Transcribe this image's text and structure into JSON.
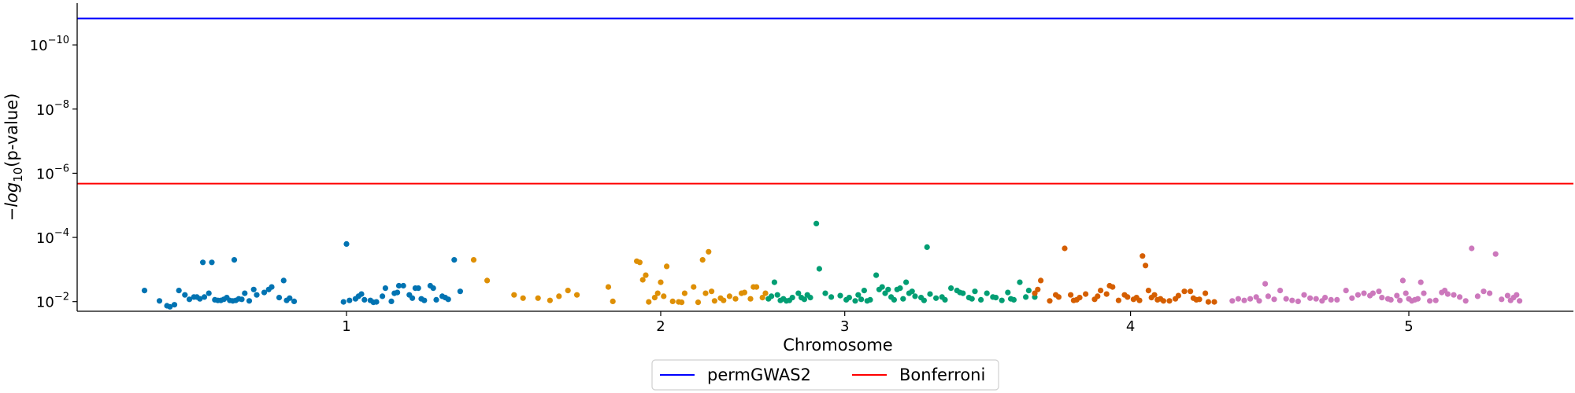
{
  "chart_data": {
    "type": "scatter",
    "title": "",
    "xlabel": "Chromosome",
    "ylabel_parts": [
      "−",
      "log",
      "10",
      "(p-value)"
    ],
    "y_scale": "log",
    "ylim": [
      0.02,
      5e-12
    ],
    "x_ticks": [
      {
        "label": "1",
        "x": 0.18
      },
      {
        "label": "2",
        "x": 0.39
      },
      {
        "label": "3",
        "x": 0.513
      },
      {
        "label": "4",
        "x": 0.704
      },
      {
        "label": "5",
        "x": 0.89
      }
    ],
    "y_ticks": [
      {
        "base": "10",
        "exp": "−2",
        "value": 0.01
      },
      {
        "base": "10",
        "exp": "−4",
        "value": 0.0001
      },
      {
        "base": "10",
        "exp": "−6",
        "value": 1e-06
      },
      {
        "base": "10",
        "exp": "−8",
        "value": 1e-08
      },
      {
        "base": "10",
        "exp": "−10",
        "value": 1e-10
      }
    ],
    "thresholds": [
      {
        "name": "permGWAS2",
        "value": 1.5e-11,
        "color": "#0000ff"
      },
      {
        "name": "Bonferroni",
        "value": 2.1e-06,
        "color": "#ff0000"
      }
    ],
    "legend": {
      "placement": "bottom-center"
    },
    "series": [
      {
        "chromosome": "1",
        "color": "#0173b2",
        "points": [
          [
            0.045,
            0.0045
          ],
          [
            0.055,
            0.0095
          ],
          [
            0.06,
            0.0135
          ],
          [
            0.062,
            0.0145
          ],
          [
            0.065,
            0.0125
          ],
          [
            0.068,
            0.0045
          ],
          [
            0.072,
            0.0062
          ],
          [
            0.075,
            0.0085
          ],
          [
            0.078,
            0.0072
          ],
          [
            0.08,
            0.0072
          ],
          [
            0.082,
            0.0082
          ],
          [
            0.084,
            0.0006
          ],
          [
            0.085,
            0.0072
          ],
          [
            0.088,
            0.0055
          ],
          [
            0.09,
            0.0006
          ],
          [
            0.092,
            0.0088
          ],
          [
            0.094,
            0.0092
          ],
          [
            0.096,
            0.0092
          ],
          [
            0.098,
            0.0085
          ],
          [
            0.1,
            0.0075
          ],
          [
            0.102,
            0.0092
          ],
          [
            0.104,
            0.0095
          ],
          [
            0.105,
            0.0005
          ],
          [
            0.106,
            0.0092
          ],
          [
            0.108,
            0.0082
          ],
          [
            0.11,
            0.0085
          ],
          [
            0.112,
            0.0055
          ],
          [
            0.115,
            0.0095
          ],
          [
            0.118,
            0.0042
          ],
          [
            0.12,
            0.0062
          ],
          [
            0.125,
            0.0052
          ],
          [
            0.128,
            0.0042
          ],
          [
            0.13,
            0.0035
          ],
          [
            0.135,
            0.0075
          ],
          [
            0.138,
            0.0022
          ],
          [
            0.14,
            0.0092
          ],
          [
            0.142,
            0.0078
          ],
          [
            0.145,
            0.0098
          ],
          [
            0.178,
            0.0102
          ],
          [
            0.18,
            0.00016
          ],
          [
            0.182,
            0.0092
          ],
          [
            0.186,
            0.0082
          ],
          [
            0.188,
            0.0068
          ],
          [
            0.19,
            0.0058
          ],
          [
            0.192,
            0.0088
          ],
          [
            0.196,
            0.0092
          ],
          [
            0.198,
            0.0105
          ],
          [
            0.2,
            0.0102
          ],
          [
            0.204,
            0.0068
          ],
          [
            0.206,
            0.0038
          ],
          [
            0.21,
            0.0098
          ],
          [
            0.212,
            0.0055
          ],
          [
            0.214,
            0.0052
          ],
          [
            0.215,
            0.0032
          ],
          [
            0.218,
            0.0032
          ],
          [
            0.222,
            0.0062
          ],
          [
            0.224,
            0.0078
          ],
          [
            0.226,
            0.0038
          ],
          [
            0.228,
            0.0038
          ],
          [
            0.23,
            0.0082
          ],
          [
            0.232,
            0.0092
          ],
          [
            0.236,
            0.0032
          ],
          [
            0.238,
            0.0038
          ],
          [
            0.24,
            0.0088
          ],
          [
            0.244,
            0.0068
          ],
          [
            0.246,
            0.0075
          ],
          [
            0.248,
            0.0085
          ],
          [
            0.252,
            0.0005
          ],
          [
            0.256,
            0.0048
          ]
        ]
      },
      {
        "chromosome": "2",
        "color": "#de8f05",
        "points": [
          [
            0.265,
            0.0005
          ],
          [
            0.274,
            0.0022
          ],
          [
            0.292,
            0.0062
          ],
          [
            0.298,
            0.0078
          ],
          [
            0.308,
            0.0078
          ],
          [
            0.316,
            0.0092
          ],
          [
            0.322,
            0.0068
          ],
          [
            0.328,
            0.0045
          ],
          [
            0.334,
            0.0062
          ],
          [
            0.355,
            0.0035
          ],
          [
            0.358,
            0.0098
          ],
          [
            0.374,
            0.00055
          ],
          [
            0.376,
            0.0006
          ],
          [
            0.378,
            0.0021
          ],
          [
            0.38,
            0.0015
          ],
          [
            0.382,
            0.0102
          ],
          [
            0.386,
            0.0075
          ],
          [
            0.388,
            0.0055
          ],
          [
            0.39,
            0.0025
          ],
          [
            0.392,
            0.0068
          ],
          [
            0.394,
            0.0008
          ],
          [
            0.398,
            0.0098
          ],
          [
            0.402,
            0.0102
          ],
          [
            0.404,
            0.0105
          ],
          [
            0.406,
            0.0055
          ],
          [
            0.412,
            0.0035
          ],
          [
            0.415,
            0.0105
          ],
          [
            0.418,
            0.0005
          ],
          [
            0.42,
            0.0055
          ],
          [
            0.422,
            0.00028
          ],
          [
            0.424,
            0.0048
          ],
          [
            0.426,
            0.0095
          ],
          [
            0.43,
            0.0078
          ],
          [
            0.432,
            0.0092
          ],
          [
            0.436,
            0.0068
          ],
          [
            0.44,
            0.0082
          ],
          [
            0.444,
            0.0055
          ],
          [
            0.446,
            0.0052
          ],
          [
            0.45,
            0.0082
          ],
          [
            0.452,
            0.0035
          ],
          [
            0.454,
            0.0035
          ],
          [
            0.458,
            0.0075
          ],
          [
            0.46,
            0.0055
          ]
        ]
      },
      {
        "chromosome": "3",
        "color": "#029e73",
        "points": [
          [
            0.462,
            0.0082
          ],
          [
            0.464,
            0.0068
          ],
          [
            0.466,
            0.0025
          ],
          [
            0.468,
            0.0062
          ],
          [
            0.47,
            0.0092
          ],
          [
            0.472,
            0.0082
          ],
          [
            0.474,
            0.0095
          ],
          [
            0.476,
            0.0092
          ],
          [
            0.478,
            0.0075
          ],
          [
            0.482,
            0.0055
          ],
          [
            0.484,
            0.0075
          ],
          [
            0.486,
            0.0085
          ],
          [
            0.488,
            0.0062
          ],
          [
            0.49,
            0.0075
          ],
          [
            0.494,
            3.7e-05
          ],
          [
            0.496,
            0.00095
          ],
          [
            0.5,
            0.0055
          ],
          [
            0.504,
            0.0072
          ],
          [
            0.51,
            0.0065
          ],
          [
            0.514,
            0.0088
          ],
          [
            0.516,
            0.0075
          ],
          [
            0.52,
            0.0095
          ],
          [
            0.522,
            0.0062
          ],
          [
            0.524,
            0.0085
          ],
          [
            0.526,
            0.0045
          ],
          [
            0.528,
            0.0095
          ],
          [
            0.53,
            0.0088
          ],
          [
            0.534,
            0.0015
          ],
          [
            0.536,
            0.0042
          ],
          [
            0.538,
            0.0035
          ],
          [
            0.54,
            0.0055
          ],
          [
            0.542,
            0.0042
          ],
          [
            0.544,
            0.0072
          ],
          [
            0.546,
            0.0088
          ],
          [
            0.548,
            0.0042
          ],
          [
            0.55,
            0.0038
          ],
          [
            0.552,
            0.0082
          ],
          [
            0.554,
            0.0025
          ],
          [
            0.556,
            0.0055
          ],
          [
            0.558,
            0.0048
          ],
          [
            0.56,
            0.0068
          ],
          [
            0.564,
            0.0075
          ],
          [
            0.566,
            0.0092
          ],
          [
            0.568,
            0.0002
          ],
          [
            0.57,
            0.0058
          ],
          [
            0.574,
            0.0078
          ],
          [
            0.578,
            0.0072
          ],
          [
            0.58,
            0.0088
          ],
          [
            0.584,
            0.0038
          ],
          [
            0.588,
            0.0045
          ],
          [
            0.59,
            0.0052
          ],
          [
            0.592,
            0.0055
          ],
          [
            0.596,
            0.0075
          ],
          [
            0.598,
            0.0082
          ],
          [
            0.6,
            0.0048
          ],
          [
            0.604,
            0.0088
          ],
          [
            0.608,
            0.0055
          ],
          [
            0.612,
            0.0072
          ],
          [
            0.614,
            0.0075
          ],
          [
            0.618,
            0.0092
          ],
          [
            0.622,
            0.0052
          ],
          [
            0.624,
            0.0082
          ],
          [
            0.626,
            0.0088
          ],
          [
            0.63,
            0.0025
          ],
          [
            0.634,
            0.0072
          ],
          [
            0.636,
            0.0045
          ],
          [
            0.64,
            0.0072
          ]
        ]
      },
      {
        "chromosome": "4",
        "color": "#d55e00",
        "points": [
          [
            0.64,
            0.0055
          ],
          [
            0.642,
            0.0042
          ],
          [
            0.644,
            0.0022
          ],
          [
            0.65,
            0.0095
          ],
          [
            0.654,
            0.0062
          ],
          [
            0.656,
            0.0072
          ],
          [
            0.66,
            0.00022
          ],
          [
            0.664,
            0.0062
          ],
          [
            0.666,
            0.0092
          ],
          [
            0.668,
            0.0088
          ],
          [
            0.67,
            0.0075
          ],
          [
            0.674,
            0.0058
          ],
          [
            0.68,
            0.0085
          ],
          [
            0.682,
            0.0068
          ],
          [
            0.684,
            0.0045
          ],
          [
            0.688,
            0.0058
          ],
          [
            0.69,
            0.0032
          ],
          [
            0.692,
            0.0035
          ],
          [
            0.696,
            0.0092
          ],
          [
            0.7,
            0.0062
          ],
          [
            0.702,
            0.0072
          ],
          [
            0.706,
            0.0085
          ],
          [
            0.708,
            0.0075
          ],
          [
            0.71,
            0.0092
          ],
          [
            0.712,
            0.00038
          ],
          [
            0.714,
            0.00075
          ],
          [
            0.716,
            0.0045
          ],
          [
            0.718,
            0.0075
          ],
          [
            0.72,
            0.0062
          ],
          [
            0.722,
            0.0088
          ],
          [
            0.724,
            0.0082
          ],
          [
            0.726,
            0.0095
          ],
          [
            0.73,
            0.0095
          ],
          [
            0.734,
            0.0082
          ],
          [
            0.736,
            0.0065
          ],
          [
            0.74,
            0.0048
          ],
          [
            0.744,
            0.0048
          ],
          [
            0.746,
            0.0078
          ],
          [
            0.748,
            0.0088
          ],
          [
            0.75,
            0.0085
          ],
          [
            0.754,
            0.0055
          ],
          [
            0.756,
            0.0102
          ],
          [
            0.76,
            0.0102
          ]
        ]
      },
      {
        "chromosome": "5",
        "color": "#cc78bc",
        "points": [
          [
            0.772,
            0.0095
          ],
          [
            0.776,
            0.0082
          ],
          [
            0.78,
            0.0092
          ],
          [
            0.784,
            0.0082
          ],
          [
            0.788,
            0.0072
          ],
          [
            0.79,
            0.0095
          ],
          [
            0.794,
            0.0028
          ],
          [
            0.796,
            0.0068
          ],
          [
            0.8,
            0.0085
          ],
          [
            0.804,
            0.0045
          ],
          [
            0.808,
            0.0082
          ],
          [
            0.812,
            0.0092
          ],
          [
            0.816,
            0.0098
          ],
          [
            0.82,
            0.0062
          ],
          [
            0.824,
            0.0078
          ],
          [
            0.828,
            0.0082
          ],
          [
            0.832,
            0.0095
          ],
          [
            0.834,
            0.0075
          ],
          [
            0.838,
            0.0088
          ],
          [
            0.842,
            0.0088
          ],
          [
            0.848,
            0.0045
          ],
          [
            0.852,
            0.0078
          ],
          [
            0.856,
            0.0062
          ],
          [
            0.86,
            0.0055
          ],
          [
            0.864,
            0.0065
          ],
          [
            0.866,
            0.0055
          ],
          [
            0.87,
            0.0048
          ],
          [
            0.872,
            0.0075
          ],
          [
            0.876,
            0.0082
          ],
          [
            0.878,
            0.0088
          ],
          [
            0.882,
            0.0065
          ],
          [
            0.884,
            0.0092
          ],
          [
            0.886,
            0.0022
          ],
          [
            0.888,
            0.0055
          ],
          [
            0.89,
            0.0082
          ],
          [
            0.892,
            0.0095
          ],
          [
            0.894,
            0.0088
          ],
          [
            0.896,
            0.0082
          ],
          [
            0.898,
            0.0025
          ],
          [
            0.9,
            0.0055
          ],
          [
            0.904,
            0.0095
          ],
          [
            0.908,
            0.0092
          ],
          [
            0.912,
            0.0052
          ],
          [
            0.914,
            0.0045
          ],
          [
            0.916,
            0.0058
          ],
          [
            0.92,
            0.0062
          ],
          [
            0.924,
            0.0072
          ],
          [
            0.928,
            0.0095
          ],
          [
            0.932,
            0.00022
          ],
          [
            0.936,
            0.0068
          ],
          [
            0.94,
            0.0048
          ],
          [
            0.944,
            0.0055
          ],
          [
            0.948,
            0.00033
          ],
          [
            0.952,
            0.0085
          ],
          [
            0.956,
            0.0065
          ],
          [
            0.958,
            0.0092
          ],
          [
            0.96,
            0.0075
          ],
          [
            0.962,
            0.0062
          ],
          [
            0.964,
            0.0095
          ]
        ]
      }
    ]
  }
}
